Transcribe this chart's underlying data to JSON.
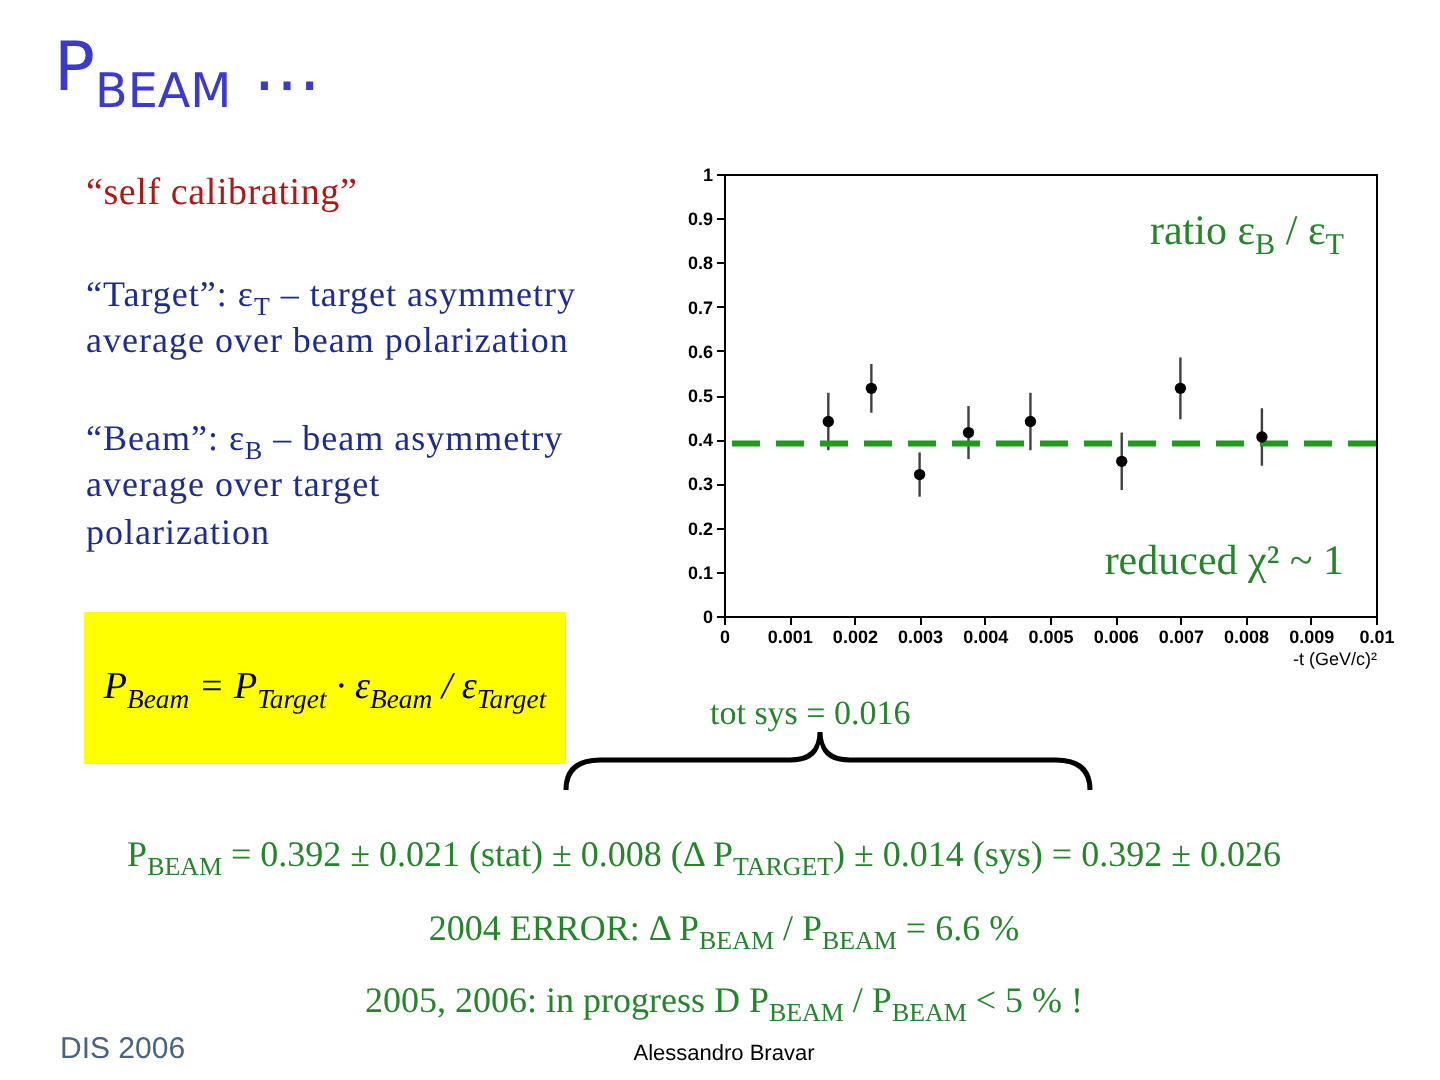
{
  "chart_data": {
    "type": "scatter",
    "title": "P$_{BEAM}$ …",
    "xlabel": "-t (GeV/c)²",
    "x": [
      0.0016,
      0.00226,
      0.003,
      0.00375,
      0.0047,
      0.0061,
      0.007,
      0.00825
    ],
    "series": [
      {
        "color": "#000000",
        "values": [
          0.44,
          0.515,
          0.32,
          0.415,
          0.44,
          0.35,
          0.515,
          0.405
        ],
        "errors": [
          0.065,
          0.055,
          0.05,
          0.06,
          0.065,
          0.065,
          0.07,
          0.065
        ]
      }
    ],
    "xlim": [
      0,
      0.01
    ],
    "ylim": [
      0,
      1
    ],
    "xticks": [
      0,
      0.001,
      0.002,
      0.003,
      0.004,
      0.005,
      0.006,
      0.007,
      0.008,
      0.009,
      0.01
    ],
    "yticks": [
      0,
      0.1,
      0.2,
      0.3,
      0.4,
      0.5,
      0.6,
      0.7,
      0.8,
      0.9,
      1
    ],
    "marker": "circle",
    "ref_lines": [
      {
        "axis": "y",
        "value": 0.39,
        "color": "#1f9a1f",
        "line_style": "dashed"
      }
    ],
    "annotations": [
      "“self calibrating”",
      "“Target”: ε$_{T}$ – target asymmetry average over beam polarization",
      "“Beam”: ε$_{B}$ – beam asymmetry average over target polarization",
      "P$_{Beam}$ = P$_{Target}$ · ε$_{Beam}$ / ε$_{Target}$",
      "ratio ε$_{B}$ / ε$_{T}$",
      "reduced χ² ~ 1",
      "tot sys = 0.016",
      "P$_{BEAM}$ = 0.392 ± 0.021 (stat) ± 0.008 (Δ P$_{TARGET}$) ± 0.014 (sys) = 0.392 ± 0.026",
      "2004 ERROR: Δ P$_{BEAM}$ / P$_{BEAM}$ = 6.6 %",
      "2005, 2006: in progress D P$_{BEAM}$ / P$_{BEAM}$ < 5 % !",
      "DIS 2006",
      "Alessandro Bravar"
    ]
  }
}
